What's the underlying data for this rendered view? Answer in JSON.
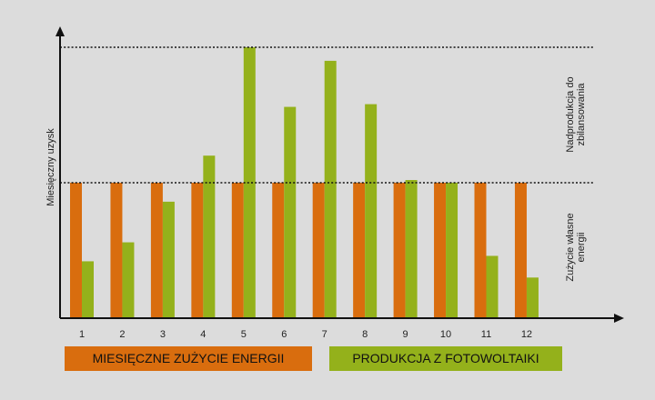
{
  "chart_data": {
    "type": "bar",
    "categories": [
      "1",
      "2",
      "3",
      "4",
      "5",
      "6",
      "7",
      "8",
      "9",
      "10",
      "11",
      "12"
    ],
    "series": [
      {
        "name": "MIESIĘCZNE ZUŻYCIE ENERGII",
        "values": [
          50,
          50,
          50,
          50,
          50,
          50,
          50,
          50,
          50,
          50,
          50,
          50
        ],
        "color": "#d96d0e"
      },
      {
        "name": "PRODUKCJA Z FOTOWOLTAIKI",
        "values": [
          21,
          28,
          43,
          60,
          100,
          78,
          95,
          79,
          51,
          50,
          23,
          15
        ],
        "color": "#94b11b"
      }
    ],
    "ylabel": "Miesięczny uzysk",
    "xlabel": "",
    "ylim": [
      0,
      100
    ],
    "reference_lines": [
      {
        "value": 50,
        "style": "dotted"
      },
      {
        "value": 100,
        "style": "dotted"
      }
    ],
    "zone_labels": {
      "upper": [
        "Nadprodukcja do",
        "zbilansowania"
      ],
      "lower": [
        "Zużycie własne",
        "energii"
      ]
    },
    "grid": false,
    "legend": "bottom"
  }
}
